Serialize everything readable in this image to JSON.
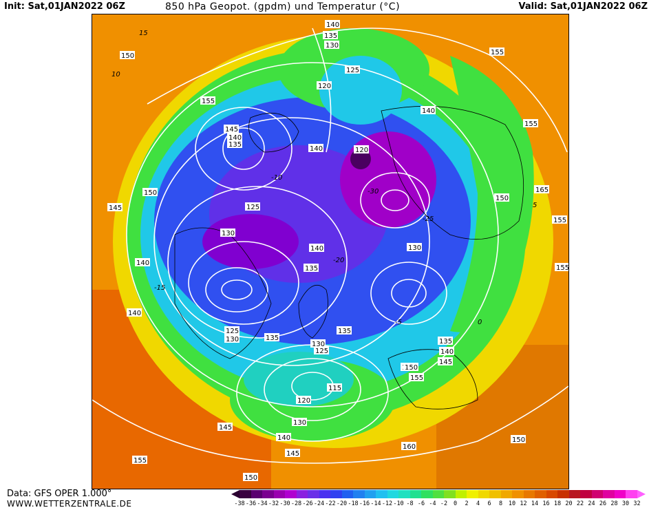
{
  "header": {
    "init": "Init: Sat,01JAN2022 06Z",
    "title": "850 hPa Geopot. (gpdm) und Temperatur (°C)",
    "valid": "Valid: Sat,01JAN2022 06Z"
  },
  "footer": {
    "data_source": "Data: GFS OPER 1.000°",
    "website": "WWW.WETTERZENTRALE.DE"
  },
  "colorbar": {
    "labels": [
      "-38",
      "-36",
      "-34",
      "-32",
      "-30",
      "-28",
      "-26",
      "-24",
      "-22",
      "-20",
      "-18",
      "-16",
      "-14",
      "-12",
      "-10",
      "-8",
      "-6",
      "-4",
      "-2",
      "0",
      "2",
      "4",
      "6",
      "8",
      "10",
      "12",
      "14",
      "16",
      "18",
      "20",
      "22",
      "24",
      "26",
      "28",
      "30",
      "32"
    ],
    "colors": [
      "#3a0040",
      "#5a0070",
      "#7a0090",
      "#9a00b0",
      "#b000d0",
      "#8a20e0",
      "#6a30e8",
      "#4a30f0",
      "#3040f0",
      "#2060f0",
      "#2080f0",
      "#20a0f0",
      "#20c0f0",
      "#20d8e0",
      "#20e0c0",
      "#20e090",
      "#30e060",
      "#50e040",
      "#80e020",
      "#c0f000",
      "#f0f000",
      "#f0d800",
      "#f0c000",
      "#f0a800",
      "#f09000",
      "#e87800",
      "#e06000",
      "#d84800",
      "#c83000",
      "#b81820",
      "#c00040",
      "#d00070",
      "#e000a0",
      "#f000c8",
      "#ff40f0"
    ],
    "arrow_left_color": "#2a0030",
    "arrow_right_color": "#ff60ff"
  },
  "map": {
    "geopotential_labels": [
      {
        "text": "140"
      },
      {
        "text": "135"
      },
      {
        "text": "130"
      },
      {
        "text": "125"
      },
      {
        "text": "120"
      },
      {
        "text": "155"
      },
      {
        "text": "150"
      },
      {
        "text": "155"
      },
      {
        "text": "145"
      },
      {
        "text": "140"
      },
      {
        "text": "135"
      },
      {
        "text": "140"
      },
      {
        "text": "140"
      },
      {
        "text": "120"
      },
      {
        "text": "150"
      },
      {
        "text": "155"
      },
      {
        "text": "165"
      },
      {
        "text": "150"
      },
      {
        "text": "155"
      },
      {
        "text": "145"
      },
      {
        "text": "125"
      },
      {
        "text": "130"
      },
      {
        "text": "140"
      },
      {
        "text": "130"
      },
      {
        "text": "155"
      },
      {
        "text": "140"
      },
      {
        "text": "135"
      },
      {
        "text": "140"
      },
      {
        "text": "135"
      },
      {
        "text": "135"
      },
      {
        "text": "130"
      },
      {
        "text": "125"
      },
      {
        "text": "130"
      },
      {
        "text": "125"
      },
      {
        "text": "140"
      },
      {
        "text": "135"
      },
      {
        "text": "150"
      },
      {
        "text": "145"
      },
      {
        "text": "155"
      },
      {
        "text": "115"
      },
      {
        "text": "120"
      },
      {
        "text": "130"
      },
      {
        "text": "145"
      },
      {
        "text": "140"
      },
      {
        "text": "145"
      },
      {
        "text": "150"
      },
      {
        "text": "160"
      },
      {
        "text": "150"
      },
      {
        "text": "155"
      },
      {
        "text": "150"
      }
    ],
    "temperature_labels": [
      "15",
      "10",
      "5",
      "-5",
      "-10",
      "-15",
      "-20",
      "-25",
      "-30",
      "0"
    ]
  }
}
